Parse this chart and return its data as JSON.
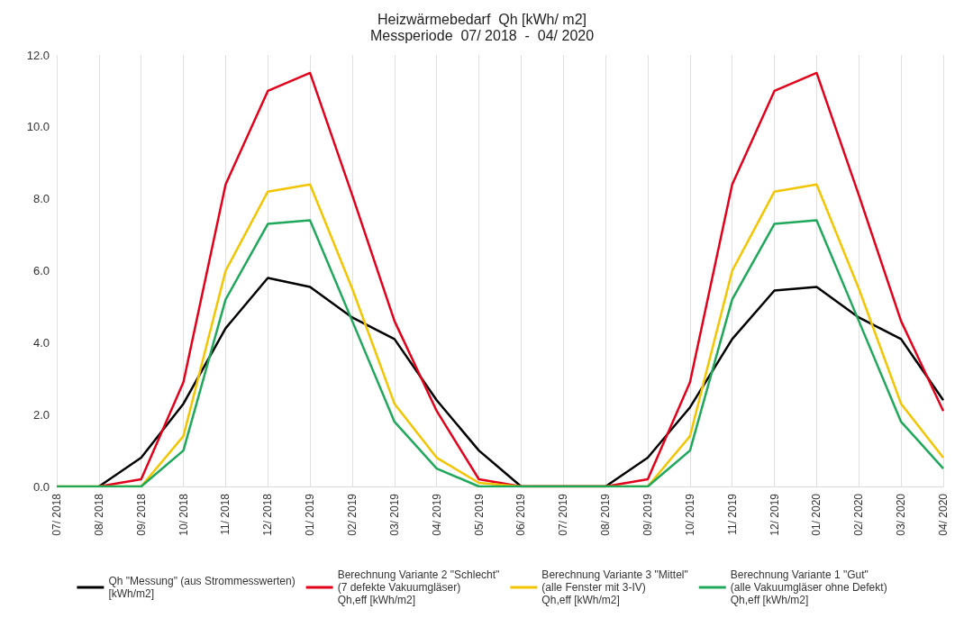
{
  "chart_data": {
    "type": "line",
    "title": "Heizwärmebedarf  Qh [kWh/ m2]",
    "subtitle": "Messperiode  07/ 2018  -  04/ 2020",
    "categories": [
      "07/ 2018",
      "08/ 2018",
      "09/ 2018",
      "10/ 2018",
      "11/ 2018",
      "12/ 2018",
      "01/ 2019",
      "02/ 2019",
      "03/ 2019",
      "04/ 2019",
      "05/ 2019",
      "06/ 2019",
      "07/ 2019",
      "08/ 2019",
      "09/ 2019",
      "10/ 2019",
      "11/ 2019",
      "12/ 2019",
      "01/ 2020",
      "02/ 2020",
      "03/ 2020",
      "04/ 2020"
    ],
    "series": [
      {
        "name": "Qh \"Messung\" (aus Strommesswerten)\n[kWh/m2]",
        "color": "#000000",
        "values": [
          null,
          0,
          0.8,
          2.3,
          4.4,
          5.8,
          5.55,
          4.7,
          4.1,
          2.4,
          1.0,
          0,
          0,
          0,
          0.8,
          2.2,
          4.1,
          5.45,
          5.55,
          4.7,
          4.1,
          2.4
        ]
      },
      {
        "name": "Berechnung Variante 2 \"Schlecht\"\n(7 defekte Vakuumgläser)\nQh,eff [kWh/m2]",
        "color": "#e3001b",
        "values": [
          null,
          0,
          0.2,
          2.9,
          8.4,
          11.0,
          11.5,
          8.1,
          4.6,
          2.1,
          0.2,
          0,
          0,
          0,
          0.2,
          2.9,
          8.4,
          11.0,
          11.5,
          8.1,
          4.6,
          2.1
        ]
      },
      {
        "name": "Berechnung Variante 3 \"Mittel\"\n(alle Fenster mit 3-IV)\nQh,eff [kWh/m2]",
        "color": "#f2c500",
        "values": [
          0,
          0,
          0,
          1.4,
          6.0,
          8.2,
          8.4,
          5.5,
          2.3,
          0.8,
          0.1,
          0,
          0,
          0,
          0,
          1.4,
          6.0,
          8.2,
          8.4,
          5.5,
          2.3,
          0.8
        ]
      },
      {
        "name": "Berechnung Variante 1 \"Gut\"\n(alle Vakuumgläser ohne Defekt)\nQh,eff [kWh/m2]",
        "color": "#1fa85a",
        "values": [
          0,
          0,
          0,
          1.0,
          5.2,
          7.3,
          7.4,
          4.6,
          1.8,
          0.5,
          0,
          0,
          0,
          0,
          0,
          1.0,
          5.2,
          7.3,
          7.4,
          4.6,
          1.8,
          0.5
        ]
      }
    ],
    "ylim": [
      0,
      12
    ],
    "yticks": [
      {
        "value": 0,
        "label": "0.0"
      },
      {
        "value": 2,
        "label": "2.0"
      },
      {
        "value": 4,
        "label": "4.0"
      },
      {
        "value": 6,
        "label": "6.0"
      },
      {
        "value": 8,
        "label": "8.0"
      },
      {
        "value": 10,
        "label": "10.0"
      },
      {
        "value": 12,
        "label": "12.0"
      }
    ],
    "grid": "x",
    "legend": "bottom",
    "marker": "none",
    "line_style": "solid"
  }
}
